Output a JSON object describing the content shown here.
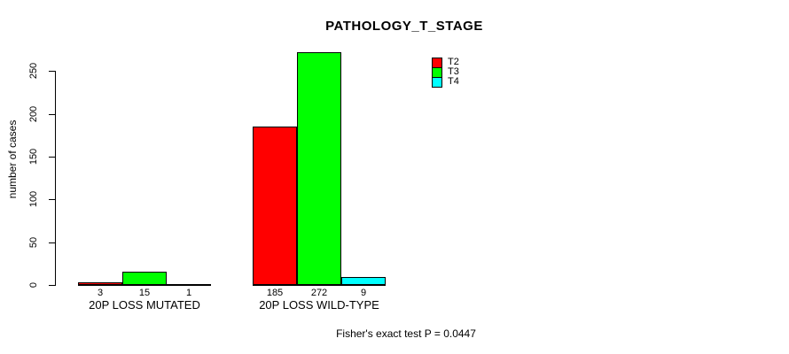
{
  "title": "PATHOLOGY_T_STAGE",
  "y_axis": {
    "label": "number of cases"
  },
  "footer": "Fisher's exact test P = 0.0447",
  "chart_data": {
    "type": "bar",
    "title": "PATHOLOGY_T_STAGE",
    "xlabel": "",
    "ylabel": "number of cases",
    "categories": [
      "20P LOSS MUTATED",
      "20P LOSS WILD-TYPE"
    ],
    "series": [
      {
        "name": "T2",
        "color": "#FF0000",
        "values": [
          3,
          185
        ]
      },
      {
        "name": "T3",
        "color": "#00FF00",
        "values": [
          15,
          272
        ]
      },
      {
        "name": "T4",
        "color": "#00FFFF",
        "values": [
          1,
          9
        ]
      }
    ],
    "bar_value_labels": [
      [
        "3",
        "15",
        "1"
      ],
      [
        "185",
        "272",
        "9"
      ]
    ],
    "yticks": [
      0,
      50,
      100,
      150,
      200,
      250
    ],
    "ylim": [
      0,
      280
    ],
    "grid": false,
    "legend_position": "top-right",
    "annotation": "Fisher's exact test P = 0.0447"
  }
}
